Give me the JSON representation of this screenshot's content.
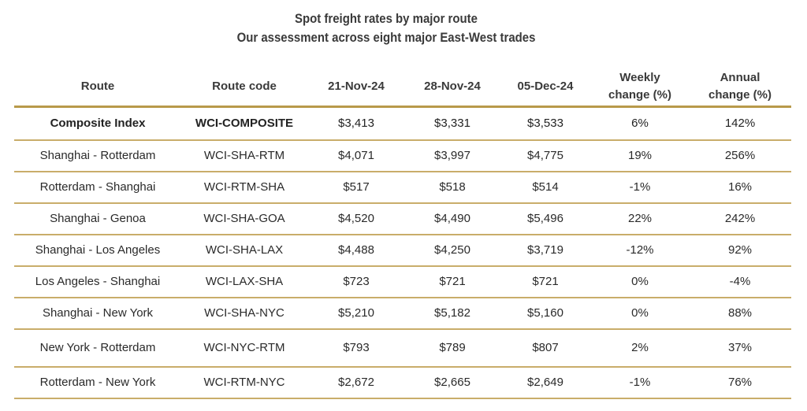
{
  "title": {
    "line1": "Spot freight rates by major route",
    "line2": "Our assessment across eight major East-West trades"
  },
  "table": {
    "headers": {
      "route": "Route",
      "route_code": "Route code",
      "date1": "21-Nov-24",
      "date2": "28-Nov-24",
      "date3": "05-Dec-24",
      "weekly_1": "Weekly",
      "weekly_2": "change (%)",
      "annual_1": "Annual",
      "annual_2": "change (%)"
    },
    "rows": [
      {
        "route": "Composite Index",
        "code": "WCI-COMPOSITE",
        "d1": "$3,413",
        "d2": "$3,331",
        "d3": "$3,533",
        "weekly": "6%",
        "annual": "142%"
      },
      {
        "route": "Shanghai - Rotterdam",
        "code": "WCI-SHA-RTM",
        "d1": "$4,071",
        "d2": "$3,997",
        "d3": "$4,775",
        "weekly": "19%",
        "annual": "256%"
      },
      {
        "route": "Rotterdam - Shanghai",
        "code": "WCI-RTM-SHA",
        "d1": "$517",
        "d2": "$518",
        "d3": "$514",
        "weekly": "-1%",
        "annual": "16%"
      },
      {
        "route": "Shanghai - Genoa",
        "code": "WCI-SHA-GOA",
        "d1": "$4,520",
        "d2": "$4,490",
        "d3": "$5,496",
        "weekly": "22%",
        "annual": "242%"
      },
      {
        "route": "Shanghai - Los Angeles",
        "code": "WCI-SHA-LAX",
        "d1": "$4,488",
        "d2": "$4,250",
        "d3": "$3,719",
        "weekly": "-12%",
        "annual": "92%"
      },
      {
        "route": "Los Angeles - Shanghai",
        "code": "WCI-LAX-SHA",
        "d1": "$723",
        "d2": "$721",
        "d3": "$721",
        "weekly": "0%",
        "annual": "-4%"
      },
      {
        "route": "Shanghai - New York",
        "code": "WCI-SHA-NYC",
        "d1": "$5,210",
        "d2": "$5,182",
        "d3": "$5,160",
        "weekly": "0%",
        "annual": "88%"
      },
      {
        "route": "New York - Rotterdam",
        "code": "WCI-NYC-RTM",
        "d1": "$793",
        "d2": "$789",
        "d3": "$807",
        "weekly": "2%",
        "annual": "37%"
      },
      {
        "route": "Rotterdam - New York",
        "code": "WCI-RTM-NYC",
        "d1": "$2,672",
        "d2": "$2,665",
        "d3": "$2,649",
        "weekly": "-1%",
        "annual": "76%"
      }
    ]
  },
  "colors": {
    "rule": "#c9ad6a",
    "header_rule": "#b89a4a",
    "text": "#2a2a2a"
  }
}
